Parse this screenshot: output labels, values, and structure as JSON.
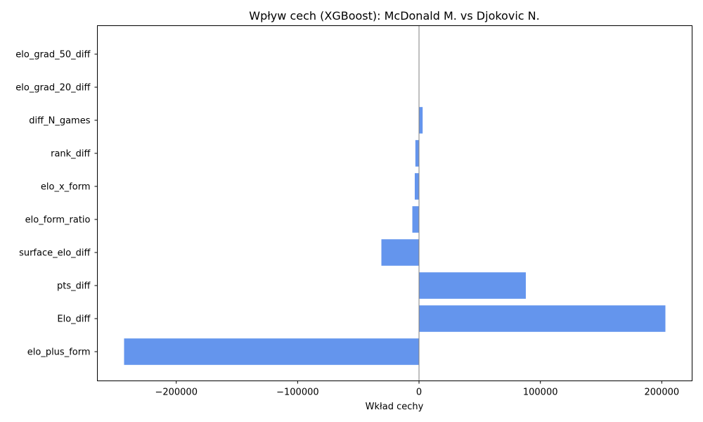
{
  "chart_data": {
    "type": "bar",
    "orientation": "horizontal",
    "title": "Wpływ cech (XGBoost): McDonald M. vs Djokovic N.",
    "xlabel": "Wkład cechy",
    "ylabel": "",
    "categories": [
      "elo_plus_form",
      "Elo_diff",
      "pts_diff",
      "surface_elo_diff",
      "elo_form_ratio",
      "elo_x_form",
      "rank_diff",
      "diff_N_games",
      "elo_grad_20_diff",
      "elo_grad_50_diff"
    ],
    "values": [
      -243000,
      203000,
      88000,
      -31000,
      -5500,
      -3500,
      -3000,
      3000,
      0,
      0
    ],
    "xlim": [
      -265000,
      225000
    ],
    "xticks": [
      -200000,
      -100000,
      0,
      100000,
      200000
    ],
    "xtick_labels": [
      "−200000",
      "−100000",
      "0",
      "100000",
      "200000"
    ],
    "bar_color": "#6495ED",
    "zero_line_color": "#808080",
    "grid": false,
    "legend": "none"
  }
}
